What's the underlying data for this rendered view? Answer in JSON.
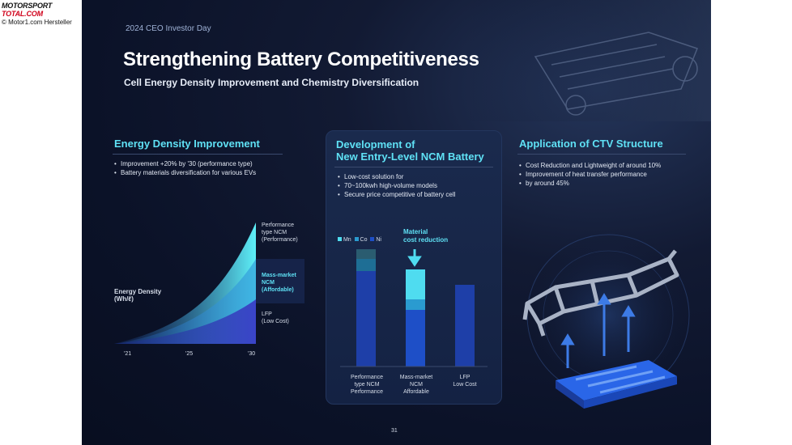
{
  "watermark": {
    "logo_top": "MOTORSPORT",
    "logo_bottom": "TOTAL.COM",
    "credit": "© Motor1.com Hersteller"
  },
  "slide": {
    "eyebrow": "2024 CEO Investor Day",
    "title": "Strengthening Battery Competitiveness",
    "subtitle": "Cell Energy Density Improvement and Chemistry Diversification",
    "page_number": "31"
  },
  "left": {
    "heading": "Energy Density Improvement",
    "bullets": [
      "Improvement +20% by '30 (performance type)",
      "Battery materials diversification for various EVs"
    ],
    "y_label_1": "Energy Density",
    "y_label_2": "(Wh/ℓ)",
    "series": [
      {
        "line1": "Performance",
        "line2": "type NCM",
        "line3": "(Performance)"
      },
      {
        "line1": "Mass-market",
        "line2": "NCM",
        "line3": "(Affordable)"
      },
      {
        "line1": "LFP",
        "line2": "(Low Cost)",
        "line3": ""
      }
    ],
    "x_ticks": [
      "'21",
      "'25",
      "'30"
    ]
  },
  "middle": {
    "heading_1": "Development of",
    "heading_2": "New Entry-Level NCM Battery",
    "bullets": [
      "Low-cost solution for",
      "70~100kwh high-volume models",
      "Secure price competitive of battery cell"
    ],
    "legend": [
      "Mn",
      "Co",
      "Ni"
    ],
    "callout_1": "Material",
    "callout_2": "cost reduction",
    "bars": [
      {
        "l1": "Performance",
        "l2": "type NCM",
        "l3": "Performance"
      },
      {
        "l1": "Mass-market",
        "l2": "NCM",
        "l3": "Affordable"
      },
      {
        "l1": "LFP",
        "l2": "Low Cost",
        "l3": ""
      }
    ]
  },
  "right": {
    "heading": "Application of CTV Structure",
    "bullets": [
      "Cost Reduction and Lightweight of around 10%",
      "Improvement of heat transfer performance",
      "by around 45%"
    ]
  },
  "colors": {
    "accent_cyan": "#5fe1f5",
    "bar_blue": "#1e4fc7",
    "bar_cyan": "#4fdcf0",
    "bar_teal": "#2a9bd0",
    "background": "#0b1228"
  }
}
